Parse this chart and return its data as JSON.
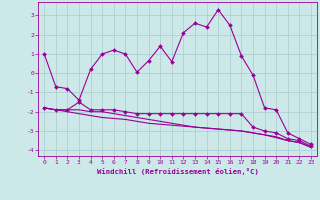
{
  "xlabel": "Windchill (Refroidissement éolien,°C)",
  "x": [
    0,
    1,
    2,
    3,
    4,
    5,
    6,
    7,
    8,
    9,
    10,
    11,
    12,
    13,
    14,
    15,
    16,
    17,
    18,
    19,
    20,
    21,
    22,
    23
  ],
  "line1": [
    1.0,
    -0.7,
    -0.8,
    -1.4,
    0.2,
    1.0,
    1.2,
    1.0,
    0.05,
    0.65,
    1.4,
    0.6,
    2.1,
    2.6,
    2.4,
    3.3,
    2.5,
    0.9,
    -0.1,
    -1.8,
    -1.9,
    -3.1,
    -3.4,
    -3.7
  ],
  "line2": [
    -1.8,
    -1.9,
    -1.9,
    -1.5,
    -1.9,
    -1.9,
    -1.9,
    -2.0,
    -2.1,
    -2.1,
    -2.1,
    -2.1,
    -2.1,
    -2.1,
    -2.1,
    -2.1,
    -2.1,
    -2.1,
    -2.8,
    -3.0,
    -3.1,
    -3.4,
    -3.5,
    -3.8
  ],
  "line3": [
    -1.8,
    -1.9,
    -1.9,
    -1.9,
    -2.0,
    -2.0,
    -2.1,
    -2.2,
    -2.3,
    -2.4,
    -2.5,
    -2.6,
    -2.7,
    -2.8,
    -2.85,
    -2.9,
    -2.95,
    -3.0,
    -3.1,
    -3.2,
    -3.3,
    -3.5,
    -3.6,
    -3.85
  ],
  "line4": [
    -1.8,
    -1.9,
    -2.0,
    -2.1,
    -2.2,
    -2.3,
    -2.35,
    -2.4,
    -2.5,
    -2.6,
    -2.65,
    -2.7,
    -2.75,
    -2.8,
    -2.85,
    -2.9,
    -2.95,
    -3.0,
    -3.1,
    -3.2,
    -3.35,
    -3.5,
    -3.6,
    -3.85
  ],
  "line_color": "#990099",
  "bg_color": "#cce8e8",
  "grid_color": "#aacccc",
  "ylim": [
    -4.3,
    3.7
  ],
  "yticks": [
    -4,
    -3,
    -2,
    -1,
    0,
    1,
    2,
    3
  ],
  "marker": "D",
  "markersize": 2.0,
  "linewidth": 0.8
}
